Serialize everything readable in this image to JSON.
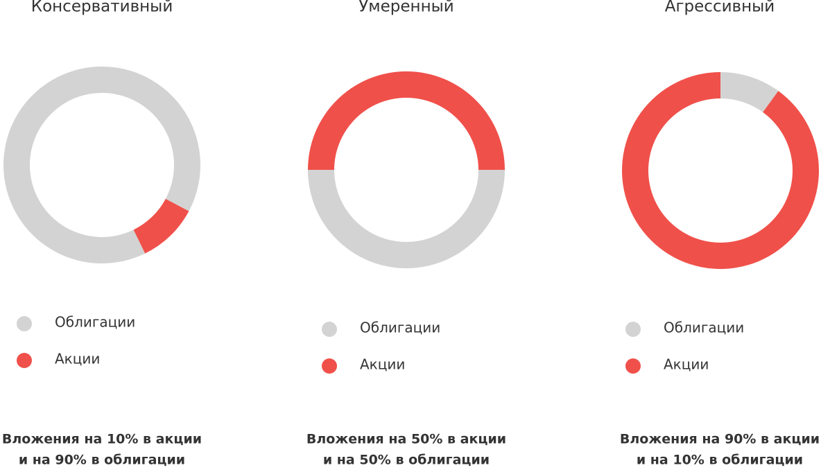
{
  "chart_data": [
    {
      "type": "pie",
      "title": "Консервативный",
      "categories": [
        "Облигации",
        "Акции"
      ],
      "values": [
        90,
        10
      ],
      "colors": [
        "#d3d3d3",
        "#f0504a"
      ],
      "startangle": 154,
      "caption": [
        "Вложения на 10% в акции",
        "и на 90% в облигации"
      ]
    },
    {
      "type": "pie",
      "title": "Умеренный",
      "categories": [
        "Облигации",
        "Акции"
      ],
      "values": [
        50,
        50
      ],
      "colors": [
        "#d3d3d3",
        "#f0504a"
      ],
      "startangle": 90,
      "caption": [
        "Вложения на 50% в акции",
        "и на 50% в облигации"
      ]
    },
    {
      "type": "pie",
      "title": "Агрессивный",
      "categories": [
        "Облигации",
        "Акции"
      ],
      "values": [
        10,
        90
      ],
      "colors": [
        "#d3d3d3",
        "#f0504a"
      ],
      "startangle": 0,
      "caption": [
        "Вложения на 90% в акции",
        "и на 10% в облигации"
      ]
    }
  ]
}
